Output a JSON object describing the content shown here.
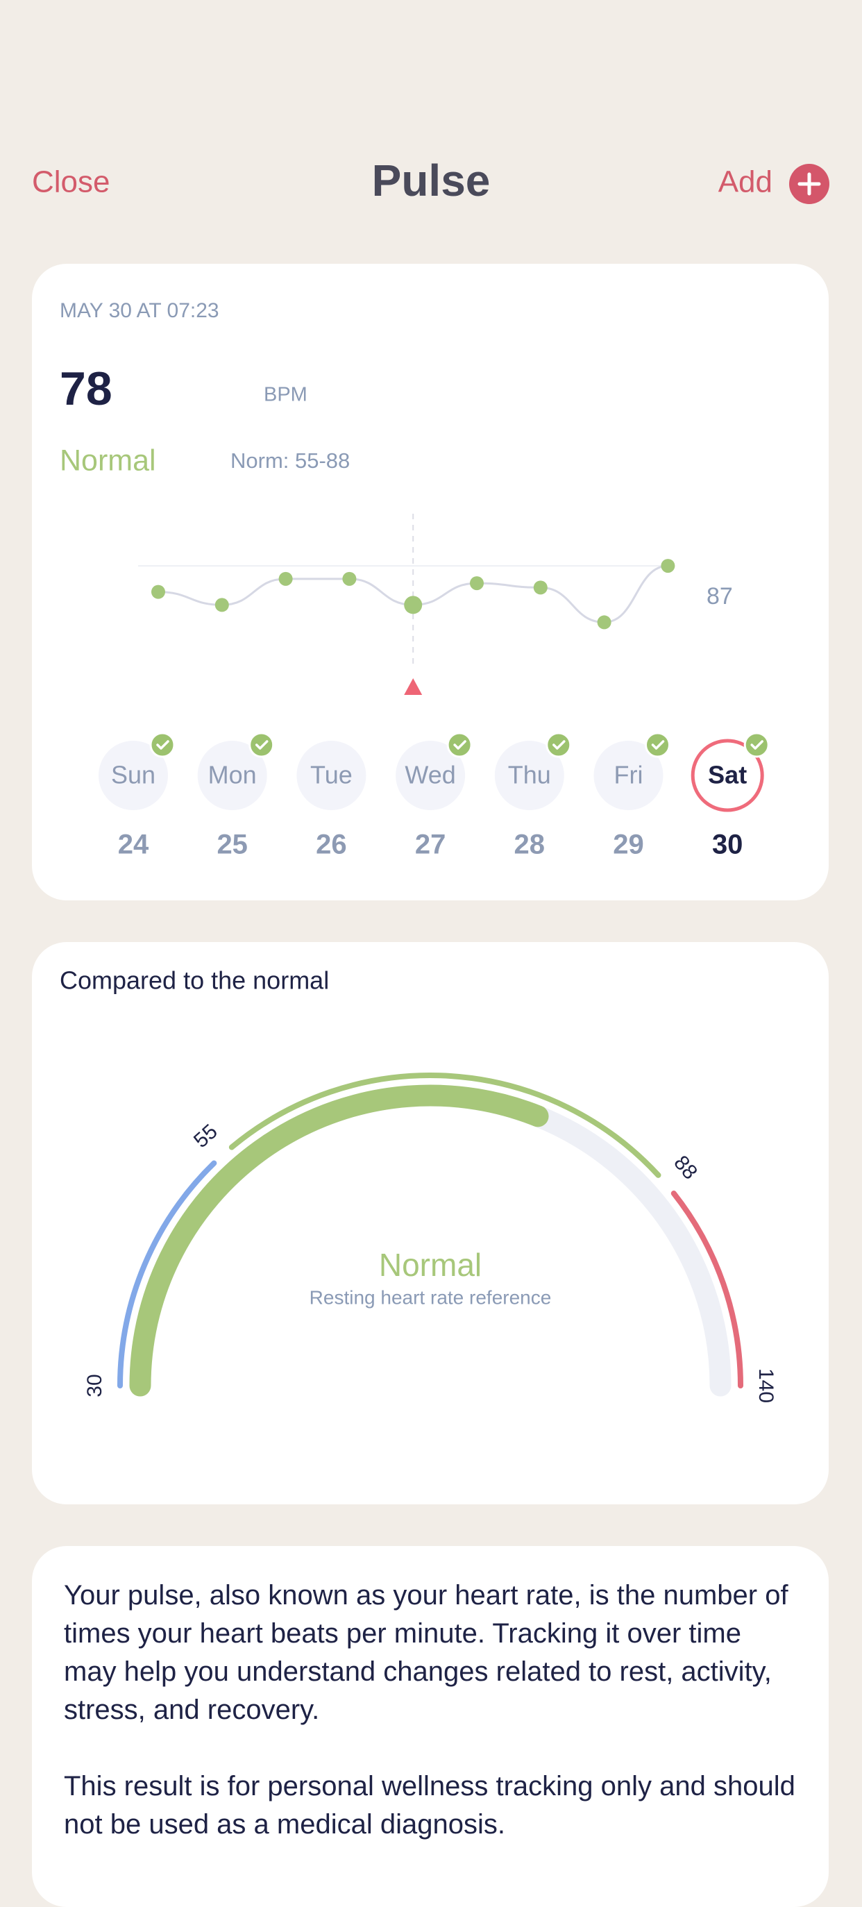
{
  "header": {
    "close": "Close",
    "title": "Pulse",
    "add": "Add"
  },
  "reading": {
    "timestamp": "MAY 30 AT 07:23",
    "value": 78,
    "unit": "BPM",
    "status": "Normal",
    "norm": "Norm: 55-88"
  },
  "sparkline": {
    "type": "line",
    "values": [
      81,
      78,
      84,
      84,
      78,
      83,
      82,
      74,
      87
    ],
    "ylim": [
      64,
      99
    ],
    "yticks": [
      87
    ],
    "selected": 4,
    "color": "#a3c77a",
    "line_color": "#d6d8e4"
  },
  "days": [
    {
      "name": "Sun",
      "date": 24,
      "checked": true
    },
    {
      "name": "Mon",
      "date": 25,
      "checked": true
    },
    {
      "name": "Tue",
      "date": 26,
      "checked": false
    },
    {
      "name": "Wed",
      "date": 27,
      "checked": true
    },
    {
      "name": "Thu",
      "date": 28,
      "checked": true
    },
    {
      "name": "Fri",
      "date": 29,
      "checked": true
    },
    {
      "name": "Sat",
      "date": 30,
      "checked": true
    }
  ],
  "selected_day": 6,
  "gauge": {
    "title": "Compared to the normal",
    "ticks": [
      30,
      55,
      88,
      140
    ],
    "value": 78,
    "zone_colors": [
      "#82a8e8",
      "#a7c77a",
      "#e46b7a"
    ],
    "value_color": "#a7c77a",
    "track_color": "#eef0f6",
    "label": "Normal",
    "caption": "Resting heart rate reference"
  },
  "info": {
    "paragraphs": [
      "Your pulse, also known as your heart rate, is the number of times your heart beats per minute. Tracking it over time may help you understand changes related to rest, activity, stress, and recovery.",
      "This result is for personal wellness tracking only and should not be used as a medical diagnosis."
    ]
  }
}
